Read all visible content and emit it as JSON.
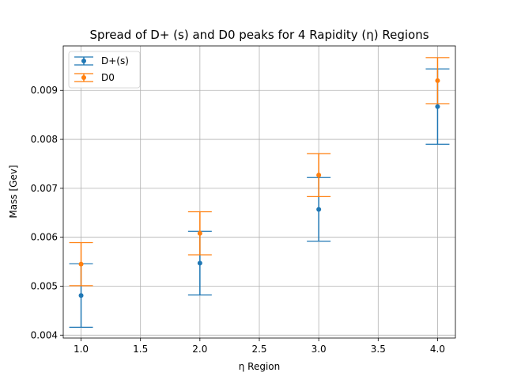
{
  "chart_data": {
    "type": "scatter",
    "title": "Spread of D+ (s) and D0 peaks for 4 Rapidity (η) Regions",
    "xlabel": "η Region",
    "ylabel": "Mass [Gev]",
    "xlim": [
      0.85,
      4.15
    ],
    "ylim": [
      0.00394,
      0.00991
    ],
    "xticks": [
      1.0,
      1.5,
      2.0,
      2.5,
      3.0,
      3.5,
      4.0
    ],
    "xtick_labels": [
      "1.0",
      "1.5",
      "2.0",
      "2.5",
      "3.0",
      "3.5",
      "4.0"
    ],
    "yticks": [
      0.004,
      0.005,
      0.006,
      0.007,
      0.008,
      0.009
    ],
    "ytick_labels": [
      "0.004",
      "0.005",
      "0.006",
      "0.007",
      "0.008",
      "0.009"
    ],
    "grid": true,
    "legend_position": "top-left",
    "errorbars": true,
    "series": [
      {
        "name": "D+(s)",
        "color": "#1f77b4",
        "x": [
          1.0,
          2.0,
          3.0,
          4.0
        ],
        "y": [
          0.00481,
          0.00547,
          0.00657,
          0.00867
        ],
        "yerr": [
          0.00065,
          0.00065,
          0.00065,
          0.00077
        ]
      },
      {
        "name": "D0",
        "color": "#ff7f0e",
        "x": [
          1.0,
          2.0,
          3.0,
          4.0
        ],
        "y": [
          0.00545,
          0.00608,
          0.00727,
          0.0092
        ],
        "yerr": [
          0.00044,
          0.00044,
          0.00044,
          0.00047
        ]
      }
    ]
  }
}
